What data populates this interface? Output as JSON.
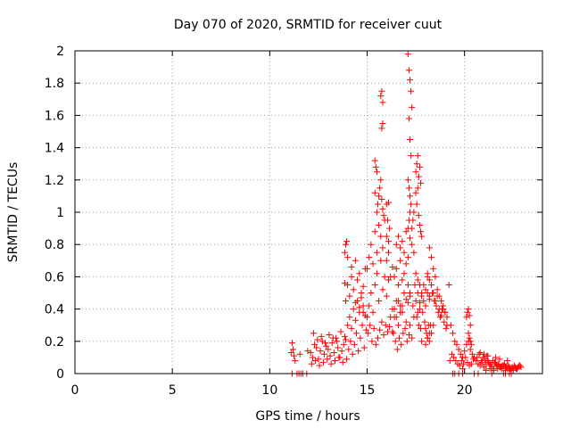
{
  "chart_data": {
    "type": "scatter",
    "title": "Day 070 of 2020, SRMTID for receiver cuut",
    "xlabel": "GPS time / hours",
    "ylabel": "SRMTID / TECUs",
    "xlim": [
      0,
      24
    ],
    "ylim": [
      0,
      2
    ],
    "xticks": [
      0,
      5,
      10,
      15,
      20
    ],
    "xtick_labels": [
      "0",
      "5",
      "10",
      "15",
      "20"
    ],
    "yticks": [
      0,
      0.2,
      0.4,
      0.6,
      0.8,
      1.0,
      1.2,
      1.4,
      1.6,
      1.8,
      2.0
    ],
    "ytick_labels": [
      "0",
      "0.2",
      "0.4",
      "0.6",
      "0.8",
      "1",
      "1.2",
      "1.4",
      "1.6",
      "1.8",
      "2"
    ],
    "grid": true,
    "marker": "+",
    "series": [
      {
        "name": "SRMTID",
        "color": "#ff0000",
        "x": [
          11.15,
          11.2,
          11.25,
          11.3,
          11.15,
          11.4,
          11.5,
          11.6,
          11.7,
          11.9,
          11.1,
          11.55,
          11.95,
          12.1,
          12.2,
          12.3,
          12.4,
          12.5,
          12.6,
          12.7,
          12.8,
          12.9,
          13.0,
          13.1,
          13.2,
          13.3,
          13.4,
          13.5,
          13.6,
          13.7,
          13.8,
          13.9,
          12.15,
          12.35,
          12.55,
          12.75,
          12.95,
          13.15,
          13.35,
          13.55,
          13.75,
          13.95,
          12.25,
          12.45,
          12.65,
          12.85,
          13.05,
          13.25,
          13.45,
          13.65,
          13.85,
          14.0,
          14.1,
          14.2,
          14.3,
          14.4,
          14.5,
          14.6,
          14.7,
          14.8,
          14.9,
          14.05,
          14.15,
          14.25,
          14.35,
          14.45,
          14.55,
          14.65,
          14.75,
          14.85,
          14.95,
          14.0,
          14.1,
          14.2,
          14.3,
          14.4,
          14.5,
          14.6,
          14.7,
          14.8,
          14.9,
          13.85,
          13.9,
          13.95,
          14.0,
          13.85,
          13.9,
          14.2,
          14.4,
          14.6,
          14.8,
          15.0,
          15.1,
          15.2,
          15.3,
          15.4,
          15.5,
          15.6,
          15.7,
          15.8,
          15.9,
          16.0,
          16.1,
          16.2,
          15.05,
          15.15,
          15.25,
          15.35,
          15.45,
          15.55,
          15.65,
          15.75,
          15.85,
          15.95,
          16.05,
          16.15,
          15.0,
          15.1,
          15.2,
          15.3,
          15.4,
          15.5,
          15.6,
          15.7,
          15.8,
          15.9,
          16.0,
          16.1,
          16.2,
          15.5,
          15.55,
          15.6,
          15.65,
          15.7,
          15.75,
          15.8,
          15.85,
          15.7,
          15.75,
          15.8,
          15.75,
          15.8,
          15.4,
          15.45,
          15.5,
          15.4,
          16.0,
          16.05,
          16.1,
          16.15,
          16.0,
          16.1,
          16.3,
          16.4,
          16.5,
          16.6,
          16.7,
          16.8,
          16.9,
          17.0,
          17.1,
          17.2,
          16.35,
          16.45,
          16.55,
          16.65,
          16.75,
          16.85,
          16.95,
          17.05,
          17.15,
          16.3,
          16.4,
          16.5,
          16.6,
          16.7,
          16.8,
          16.9,
          17.0,
          17.1,
          17.2,
          16.3,
          16.4,
          16.5,
          16.6,
          16.7,
          16.8,
          16.9,
          17.0,
          17.1,
          17.2,
          16.5,
          16.6,
          16.7,
          16.8,
          16.9,
          17.0,
          17.1,
          17.2,
          17.1,
          17.15,
          17.2,
          17.25,
          17.1,
          17.15,
          17.2,
          17.25,
          17.3,
          17.15,
          17.2,
          17.25,
          17.15,
          17.2,
          17.3,
          17.35,
          17.4,
          17.5,
          17.55,
          17.6,
          17.65,
          17.7,
          17.75,
          17.5,
          17.55,
          17.6,
          17.65,
          17.7,
          17.75,
          17.8,
          17.3,
          17.4,
          17.5,
          17.6,
          17.7,
          17.8,
          17.9,
          18.0,
          18.1,
          18.2,
          17.35,
          17.45,
          17.55,
          17.65,
          17.75,
          17.85,
          17.95,
          18.05,
          18.15,
          17.3,
          17.4,
          17.5,
          17.6,
          17.7,
          17.8,
          17.9,
          18.0,
          18.1,
          18.2,
          17.6,
          17.7,
          17.8,
          18.0,
          18.1,
          18.2,
          18.3,
          18.4,
          18.5,
          18.6,
          18.7,
          18.8,
          18.9,
          19.0,
          19.1,
          18.25,
          18.35,
          18.45,
          18.55,
          18.65,
          18.75,
          18.85,
          18.95,
          19.05,
          18.2,
          18.3,
          18.4,
          18.5,
          18.6,
          18.7,
          18.8,
          18.9,
          19.0,
          19.1,
          18.1,
          18.2,
          18.3,
          18.4,
          18.0,
          18.1,
          18.2,
          19.2,
          19.3,
          19.4,
          19.5,
          19.6,
          19.7,
          19.8,
          19.9,
          20.0,
          20.1,
          20.2,
          20.3,
          20.4,
          20.5,
          19.25,
          19.35,
          19.45,
          19.55,
          19.65,
          19.75,
          19.85,
          19.95,
          20.05,
          20.15,
          20.25,
          20.35,
          20.45,
          20.1,
          20.15,
          20.2,
          20.25,
          20.3,
          20.2,
          20.25,
          20.3,
          20.35,
          19.9,
          19.7,
          19.4,
          19.5,
          20.6,
          20.7,
          20.8,
          20.9,
          21.0,
          21.1,
          21.2,
          21.3,
          21.4,
          21.5,
          21.6,
          21.7,
          21.8,
          21.9,
          22.0,
          22.1,
          22.2,
          22.3,
          22.4,
          22.5,
          22.6,
          22.7,
          22.8,
          22.9,
          20.65,
          20.75,
          20.85,
          20.95,
          21.05,
          21.15,
          21.25,
          21.35,
          21.45,
          21.55,
          21.65,
          21.75,
          21.85,
          21.95,
          22.05,
          22.15,
          22.25,
          22.35,
          22.45,
          22.55,
          22.65,
          22.75,
          22.85,
          21.1,
          21.3,
          21.5,
          21.7,
          21.9,
          22.1,
          22.3,
          22.5,
          22.7,
          20.8,
          21.0,
          21.2,
          21.6,
          21.8,
          22.2,
          19.9,
          20.5,
          20.7,
          21.4,
          22.4,
          22.0,
          22.1,
          22.3
        ],
        "y": [
          0.19,
          0.15,
          0.11,
          0.08,
          0.0,
          0.0,
          0.0,
          0.0,
          0.0,
          0.0,
          0.13,
          0.12,
          0.14,
          0.13,
          0.1,
          0.18,
          0.16,
          0.09,
          0.14,
          0.2,
          0.12,
          0.17,
          0.15,
          0.11,
          0.19,
          0.13,
          0.22,
          0.16,
          0.1,
          0.14,
          0.18,
          0.21,
          0.06,
          0.08,
          0.05,
          0.07,
          0.09,
          0.06,
          0.08,
          0.1,
          0.07,
          0.09,
          0.25,
          0.21,
          0.23,
          0.19,
          0.24,
          0.22,
          0.2,
          0.26,
          0.23,
          0.3,
          0.35,
          0.28,
          0.4,
          0.33,
          0.45,
          0.38,
          0.5,
          0.42,
          0.36,
          0.15,
          0.2,
          0.12,
          0.18,
          0.25,
          0.14,
          0.22,
          0.3,
          0.16,
          0.27,
          0.55,
          0.48,
          0.6,
          0.52,
          0.44,
          0.58,
          0.62,
          0.47,
          0.54,
          0.65,
          0.75,
          0.8,
          0.82,
          0.72,
          0.56,
          0.45,
          0.66,
          0.7,
          0.41,
          0.38,
          0.35,
          0.42,
          0.5,
          0.38,
          0.55,
          0.62,
          0.45,
          0.7,
          0.52,
          0.6,
          0.48,
          0.58,
          0.35,
          0.25,
          0.3,
          0.2,
          0.28,
          0.18,
          0.22,
          0.27,
          0.32,
          0.24,
          0.3,
          0.26,
          0.29,
          0.65,
          0.72,
          0.8,
          0.68,
          0.88,
          0.75,
          0.92,
          0.85,
          0.78,
          0.95,
          0.7,
          0.82,
          0.6,
          1.0,
          1.05,
          1.1,
          1.15,
          1.2,
          1.08,
          1.02,
          0.98,
          1.72,
          1.75,
          1.68,
          1.52,
          1.55,
          1.32,
          1.28,
          1.25,
          1.12,
          1.05,
          0.95,
          1.06,
          0.9,
          0.85,
          0.75,
          0.4,
          0.35,
          0.45,
          0.3,
          0.38,
          0.42,
          0.5,
          0.32,
          0.55,
          0.48,
          0.25,
          0.2,
          0.15,
          0.22,
          0.18,
          0.25,
          0.28,
          0.2,
          0.24,
          0.26,
          0.6,
          0.65,
          0.55,
          0.7,
          0.58,
          0.62,
          0.68,
          0.72,
          0.5,
          0.66,
          0.4,
          0.35,
          0.45,
          0.42,
          0.38,
          0.5,
          0.46,
          0.44,
          0.3,
          0.8,
          0.85,
          0.78,
          0.82,
          0.75,
          0.88,
          0.9,
          0.84,
          1.2,
          1.15,
          1.1,
          1.05,
          1.98,
          1.88,
          1.82,
          1.75,
          1.65,
          1.58,
          1.45,
          1.35,
          0.95,
          1.0,
          0.9,
          0.95,
          1.0,
          1.25,
          1.3,
          1.35,
          1.22,
          1.28,
          1.18,
          1.12,
          1.05,
          1.15,
          0.98,
          0.92,
          0.88,
          0.85,
          0.8,
          0.75,
          0.62,
          0.58,
          0.55,
          0.5,
          0.45,
          0.52,
          0.6,
          0.48,
          0.42,
          0.55,
          0.35,
          0.3,
          0.28,
          0.38,
          0.32,
          0.25,
          0.3,
          0.22,
          0.35,
          0.45,
          0.5,
          0.4,
          0.48,
          0.55,
          0.42,
          0.5,
          0.46,
          0.38,
          0.44,
          0.2,
          0.18,
          0.22,
          0.78,
          0.72,
          0.65,
          0.6,
          0.52,
          0.48,
          0.45,
          0.4,
          0.38,
          0.35,
          0.3,
          0.5,
          0.45,
          0.42,
          0.38,
          0.35,
          0.4,
          0.32,
          0.28,
          0.25,
          0.55,
          0.5,
          0.45,
          0.48,
          0.4,
          0.36,
          0.42,
          0.38,
          0.3,
          0.22,
          0.2,
          0.25,
          0.3,
          0.28,
          0.62,
          0.58,
          0.55,
          0.3,
          0.25,
          0.2,
          0.18,
          0.15,
          0.12,
          0.1,
          0.14,
          0.18,
          0.2,
          0.15,
          0.12,
          0.1,
          0.08,
          0.12,
          0.1,
          0.08,
          0.06,
          0.05,
          0.08,
          0.06,
          0.1,
          0.07,
          0.05,
          0.06,
          0.09,
          0.35,
          0.38,
          0.4,
          0.36,
          0.3,
          0.25,
          0.22,
          0.2,
          0.18,
          0.03,
          0.0,
          0.0,
          0.0,
          0.08,
          0.06,
          0.05,
          0.07,
          0.04,
          0.06,
          0.08,
          0.05,
          0.04,
          0.03,
          0.06,
          0.05,
          0.04,
          0.03,
          0.05,
          0.04,
          0.03,
          0.04,
          0.02,
          0.03,
          0.04,
          0.03,
          0.05,
          0.04,
          0.1,
          0.12,
          0.08,
          0.1,
          0.09,
          0.11,
          0.07,
          0.06,
          0.08,
          0.07,
          0.05,
          0.06,
          0.04,
          0.05,
          0.06,
          0.04,
          0.05,
          0.03,
          0.04,
          0.05,
          0.03,
          0.04,
          0.05,
          0.02,
          0.03,
          0.02,
          0.03,
          0.04,
          0.02,
          0.03,
          0.02,
          0.03,
          0.13,
          0.12,
          0.11,
          0.1,
          0.09,
          0.08,
          0.0,
          0.0,
          0.0,
          0.0,
          0.0,
          0.0,
          0.0,
          0.0
        ]
      }
    ]
  }
}
